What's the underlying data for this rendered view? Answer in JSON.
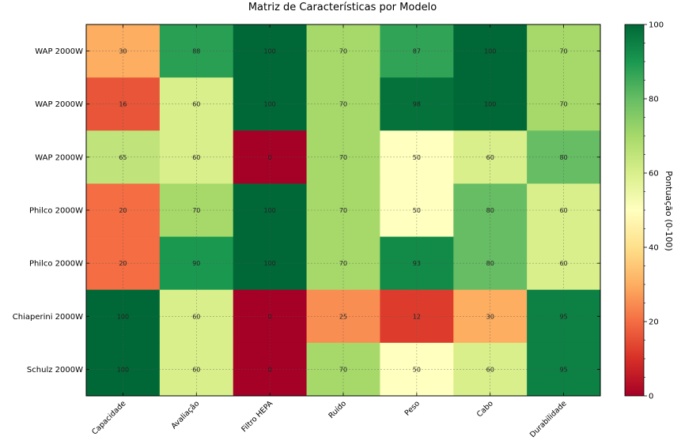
{
  "chart_data": {
    "type": "heatmap",
    "title": "Matriz de Características por Modelo",
    "columns": [
      "Capacidade",
      "Avaliação",
      "Filtro HEPA",
      "Ruído",
      "Peso",
      "Cabo",
      "Durabilidade"
    ],
    "rows": [
      "WAP 2000W",
      "WAP 2000W",
      "WAP 2000W",
      "Philco 2000W",
      "Philco 2000W",
      "Chiaperini 2000W",
      "Schulz 2000W"
    ],
    "values": [
      [
        30,
        88,
        100,
        70,
        87,
        100,
        70
      ],
      [
        16,
        60,
        100,
        70,
        98,
        100,
        70
      ],
      [
        65,
        60,
        0,
        70,
        50,
        60,
        80
      ],
      [
        20,
        70,
        100,
        70,
        50,
        80,
        60
      ],
      [
        20,
        90,
        100,
        70,
        93,
        80,
        60
      ],
      [
        100,
        60,
        0,
        25,
        12,
        30,
        95
      ],
      [
        100,
        60,
        0,
        70,
        50,
        60,
        95
      ]
    ],
    "colorbar": {
      "label": "Pontuação (0-100)",
      "range": [
        0,
        100
      ],
      "ticks": [
        0,
        20,
        40,
        60,
        80,
        100
      ]
    },
    "colormap": "RdYlGn",
    "grid": true
  }
}
